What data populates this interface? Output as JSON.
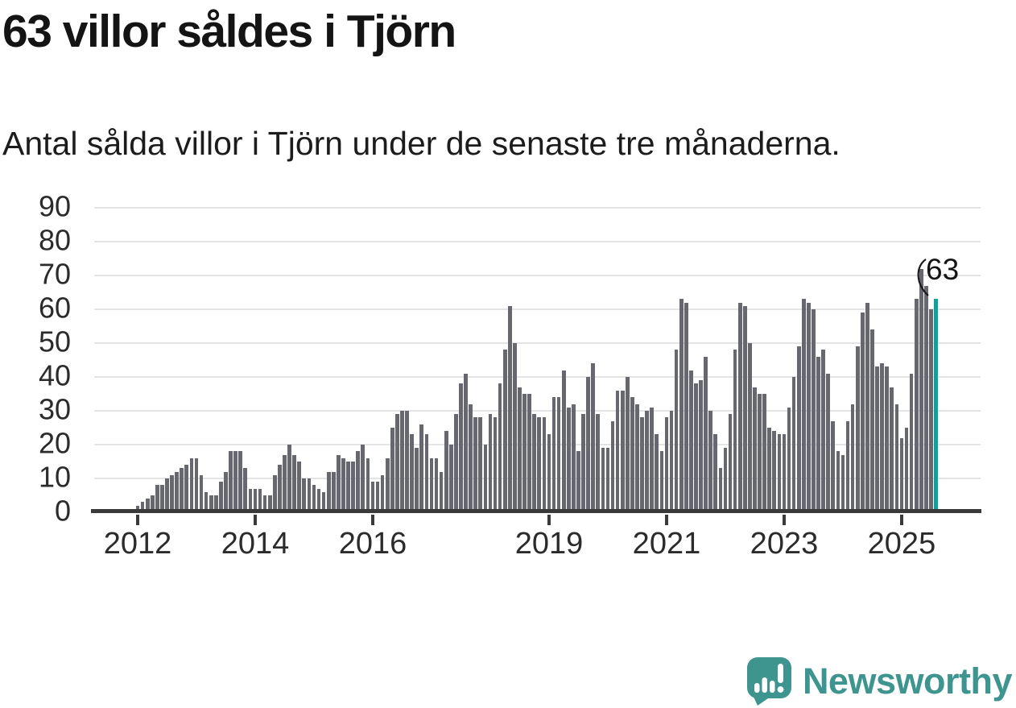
{
  "header": {
    "title": "63 villor såldes i Tjörn",
    "subtitle": "Antal sålda villor i Tjörn under de senaste tre månaderna."
  },
  "chart_data": {
    "type": "bar",
    "title": "63 villor såldes i Tjörn",
    "subtitle": "Antal sålda villor i Tjörn under de senaste tre månaderna.",
    "frequency": "monthly",
    "first_bar_year": 2012,
    "values": [
      2,
      3,
      4,
      5,
      8,
      8,
      10,
      11,
      12,
      13,
      14,
      16,
      16,
      11,
      6,
      5,
      5,
      9,
      12,
      18,
      18,
      18,
      13,
      7,
      7,
      7,
      5,
      5,
      11,
      14,
      17,
      20,
      17,
      15,
      10,
      10,
      8,
      7,
      6,
      12,
      12,
      17,
      16,
      15,
      15,
      18,
      20,
      16,
      9,
      9,
      11,
      16,
      25,
      29,
      30,
      30,
      23,
      19,
      26,
      23,
      16,
      16,
      12,
      24,
      20,
      29,
      38,
      41,
      32,
      28,
      28,
      20,
      29,
      28,
      38,
      48,
      61,
      50,
      37,
      35,
      35,
      29,
      28,
      28,
      23,
      34,
      34,
      42,
      31,
      32,
      18,
      29,
      40,
      44,
      29,
      19,
      19,
      27,
      36,
      36,
      40,
      34,
      32,
      28,
      30,
      31,
      23,
      18,
      28,
      30,
      48,
      63,
      62,
      42,
      38,
      39,
      46,
      30,
      23,
      13,
      19,
      29,
      48,
      62,
      61,
      50,
      37,
      35,
      35,
      25,
      24,
      23,
      23,
      31,
      40,
      49,
      63,
      62,
      60,
      46,
      48,
      41,
      27,
      18,
      17,
      27,
      32,
      49,
      59,
      62,
      54,
      43,
      44,
      43,
      37,
      32,
      22,
      25,
      41,
      63,
      72,
      67,
      60,
      63
    ],
    "ylim": [
      0,
      90
    ],
    "y_ticks": [
      0,
      10,
      20,
      30,
      40,
      50,
      60,
      70,
      80,
      90
    ],
    "x_ticks": [
      {
        "label": "2012",
        "month": 0
      },
      {
        "label": "2014",
        "month": 24
      },
      {
        "label": "2016",
        "month": 48
      },
      {
        "label": "2019",
        "month": 84
      },
      {
        "label": "2021",
        "month": 108
      },
      {
        "label": "2023",
        "month": 132
      },
      {
        "label": "2025",
        "month": 156
      }
    ],
    "grid": true,
    "legend": false,
    "highlight_last": true,
    "annotation": {
      "label": "63",
      "target": "last-bar"
    },
    "colors": {
      "bar": "#67676F",
      "highlight": "#0CA29B",
      "grid": "#E4E4E4",
      "axis": "#3A3A3A",
      "text": "#2B2B2B"
    }
  },
  "footer": {
    "brand": "Newsworthy",
    "brand_color": "#3E948F"
  }
}
